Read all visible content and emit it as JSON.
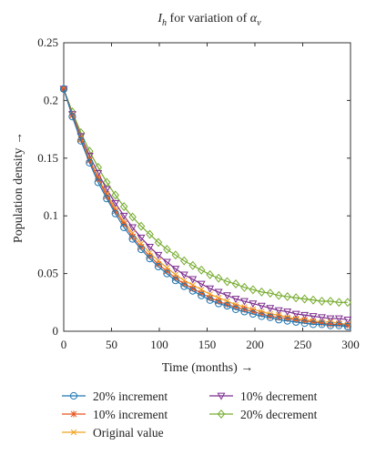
{
  "chart_data": {
    "type": "line",
    "title": {
      "main": "I",
      "sub": "h",
      "mid": " for variation of ",
      "greek": "α",
      "greek_sub": "v"
    },
    "xlabel": "Time (months) →",
    "ylabel": "Population density →",
    "xlim": [
      0,
      300
    ],
    "ylim": [
      0,
      0.25
    ],
    "x_ticks": [
      0,
      50,
      100,
      150,
      200,
      250,
      300
    ],
    "y_ticks": [
      0,
      0.05,
      0.1,
      0.15,
      0.2,
      0.25
    ],
    "x_tick_labels": [
      "0",
      "50",
      "100",
      "150",
      "200",
      "250",
      "300"
    ],
    "y_tick_labels": [
      "0",
      "0.05",
      "0.1",
      "0.15",
      "0.2",
      "0.25"
    ],
    "grid": false,
    "legend_position": "bottom",
    "x": [
      0,
      9,
      18,
      27,
      36,
      45,
      54,
      63,
      72,
      81,
      90,
      99,
      108,
      117,
      126,
      135,
      144,
      153,
      162,
      171,
      180,
      189,
      198,
      207,
      216,
      225,
      234,
      243,
      252,
      261,
      270,
      279,
      288,
      297
    ],
    "series": [
      {
        "name": "20% increment",
        "color": "#1f77b4",
        "marker": "circle",
        "values": [
          0.21,
          0.186,
          0.165,
          0.146,
          0.129,
          0.115,
          0.102,
          0.09,
          0.08,
          0.071,
          0.063,
          0.056,
          0.05,
          0.044,
          0.039,
          0.035,
          0.031,
          0.027,
          0.024,
          0.022,
          0.019,
          0.017,
          0.015,
          0.013,
          0.012,
          0.01,
          0.009,
          0.008,
          0.007,
          0.006,
          0.006,
          0.005,
          0.005,
          0.004
        ]
      },
      {
        "name": "10% increment",
        "color": "#e5541f",
        "marker": "star",
        "values": [
          0.21,
          0.187,
          0.166,
          0.148,
          0.132,
          0.117,
          0.104,
          0.093,
          0.082,
          0.073,
          0.065,
          0.058,
          0.052,
          0.046,
          0.041,
          0.037,
          0.033,
          0.029,
          0.026,
          0.023,
          0.021,
          0.019,
          0.017,
          0.015,
          0.013,
          0.012,
          0.011,
          0.01,
          0.009,
          0.008,
          0.007,
          0.006,
          0.006,
          0.005
        ]
      },
      {
        "name": "Original value",
        "color": "#f1a21d",
        "marker": "x",
        "values": [
          0.21,
          0.187,
          0.167,
          0.149,
          0.133,
          0.119,
          0.106,
          0.095,
          0.085,
          0.076,
          0.068,
          0.061,
          0.055,
          0.049,
          0.044,
          0.04,
          0.036,
          0.032,
          0.029,
          0.026,
          0.023,
          0.021,
          0.019,
          0.017,
          0.015,
          0.014,
          0.012,
          0.011,
          0.01,
          0.009,
          0.008,
          0.008,
          0.007,
          0.006
        ]
      },
      {
        "name": "10% decrement",
        "color": "#7e2f8e",
        "marker": "triangle-down",
        "values": [
          0.21,
          0.188,
          0.169,
          0.152,
          0.137,
          0.123,
          0.111,
          0.1,
          0.09,
          0.081,
          0.073,
          0.066,
          0.06,
          0.054,
          0.049,
          0.045,
          0.041,
          0.037,
          0.034,
          0.031,
          0.028,
          0.026,
          0.024,
          0.022,
          0.02,
          0.018,
          0.017,
          0.015,
          0.014,
          0.013,
          0.012,
          0.011,
          0.011,
          0.01
        ]
      },
      {
        "name": "20% decrement",
        "color": "#77ac30",
        "marker": "diamond",
        "values": [
          0.21,
          0.19,
          0.172,
          0.156,
          0.142,
          0.129,
          0.118,
          0.108,
          0.099,
          0.091,
          0.084,
          0.077,
          0.071,
          0.066,
          0.061,
          0.057,
          0.053,
          0.049,
          0.046,
          0.043,
          0.041,
          0.038,
          0.036,
          0.034,
          0.033,
          0.031,
          0.03,
          0.029,
          0.028,
          0.027,
          0.026,
          0.026,
          0.025,
          0.025
        ]
      }
    ]
  }
}
